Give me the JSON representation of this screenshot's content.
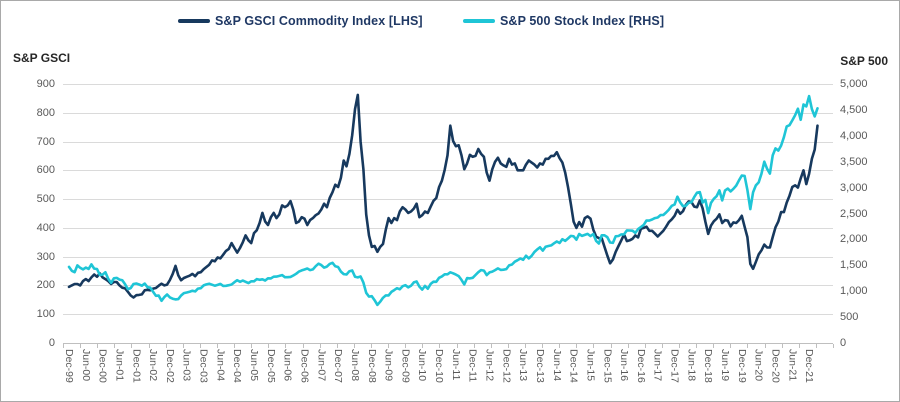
{
  "legend": {
    "items": [
      {
        "label": "S&P GSCI Commodity Index [LHS]",
        "color": "#17395e"
      },
      {
        "label": "S&P 500 Stock Index [RHS]",
        "color": "#1fc5d6"
      }
    ]
  },
  "left_axis": {
    "title": "S&P GSCI",
    "min": 0,
    "max": 900,
    "tick_labels": [
      "900",
      "800",
      "700",
      "600",
      "500",
      "400",
      "300",
      "200",
      "100",
      "0"
    ]
  },
  "right_axis": {
    "title": "S&P 500",
    "min": 0,
    "max": 5000,
    "tick_labels": [
      "5,000",
      "4,500",
      "4,000",
      "3,500",
      "3,000",
      "2,500",
      "2,000",
      "1,500",
      "1,000",
      "500",
      "0"
    ]
  },
  "x_axis": {
    "tick_labels": [
      "Dec-99",
      "Jun-00",
      "Dec-00",
      "Jun-01",
      "Dec-01",
      "Jun-02",
      "Dec-02",
      "Jun-03",
      "Dec-03",
      "Jun-04",
      "Dec-04",
      "Jun-05",
      "Dec-05",
      "Jun-06",
      "Dec-06",
      "Jun-07",
      "Dec-07",
      "Jun-08",
      "Dec-08",
      "Jun-09",
      "Dec-09",
      "Jun-10",
      "Dec-10",
      "Jun-11",
      "Dec-11",
      "Jun-12",
      "Dec-12",
      "Jun-13",
      "Dec-13",
      "Jun-14",
      "Dec-14",
      "Jun-15",
      "Dec-15",
      "Jun-16",
      "Dec-16",
      "Jun-17",
      "Dec-17",
      "Jun-18",
      "Dec-18",
      "Jun-19",
      "Dec-19",
      "Jun-20",
      "Dec-20",
      "Jun-21",
      "Dec-21"
    ]
  },
  "chart_data": {
    "type": "line",
    "title": "",
    "xlabel": "",
    "x_unit": "monthly",
    "x_start": "Dec-1999",
    "x_end": "Mar-2022",
    "grid": "horizontal",
    "legend_position": "top",
    "left_ylim": [
      0,
      900
    ],
    "right_ylim": [
      0,
      5000
    ],
    "series": [
      {
        "name": "S&P GSCI Commodity Index [LHS]",
        "axis": "left",
        "color": "#17395e",
        "values": [
          195,
          200,
          205,
          205,
          200,
          215,
          222,
          215,
          228,
          238,
          230,
          242,
          228,
          222,
          215,
          205,
          212,
          212,
          200,
          192,
          190,
          178,
          165,
          158,
          166,
          167,
          169,
          183,
          185,
          183,
          189,
          191,
          199,
          206,
          200,
          203,
          219,
          240,
          268,
          235,
          218,
          226,
          230,
          234,
          240,
          232,
          244,
          246,
          256,
          264,
          272,
          287,
          284,
          297,
          294,
          307,
          320,
          327,
          347,
          330,
          314,
          330,
          350,
          374,
          357,
          347,
          382,
          392,
          417,
          452,
          422,
          410,
          437,
          452,
          434,
          447,
          478,
          472,
          478,
          493,
          463,
          417,
          422,
          437,
          432,
          410,
          427,
          434,
          444,
          450,
          464,
          484,
          472,
          504,
          524,
          550,
          542,
          574,
          634,
          614,
          657,
          722,
          812,
          862,
          700,
          604,
          447,
          374,
          334,
          337,
          317,
          334,
          344,
          394,
          434,
          417,
          434,
          427,
          457,
          472,
          464,
          452,
          457,
          467,
          484,
          437,
          444,
          457,
          452,
          474,
          494,
          504,
          542,
          564,
          602,
          652,
          755,
          702,
          684,
          687,
          652,
          604,
          624,
          654,
          647,
          650,
          674,
          657,
          647,
          592,
          564,
          604,
          630,
          644,
          624,
          617,
          612,
          640,
          620,
          624,
          600,
          600,
          600,
          620,
          634,
          627,
          620,
          610,
          624,
          620,
          640,
          640,
          650,
          650,
          663,
          642,
          627,
          592,
          542,
          484,
          422,
          400,
          420,
          404,
          434,
          440,
          432,
          394,
          370,
          364,
          364,
          334,
          304,
          277,
          290,
          317,
          337,
          357,
          377,
          354,
          357,
          362,
          374,
          367,
          397,
          400,
          404,
          390,
          390,
          380,
          370,
          380,
          390,
          404,
          420,
          430,
          442,
          463,
          449,
          458,
          480,
          492,
          490,
          474,
          472,
          495,
          468,
          421,
          379,
          408,
          423,
          432,
          447,
          417,
          427,
          425,
          405,
          419,
          417,
          427,
          442,
          404,
          368,
          275,
          258,
          282,
          308,
          322,
          342,
          332,
          332,
          368,
          402,
          422,
          455,
          455,
          488,
          512,
          542,
          548,
          540,
          572,
          600,
          552,
          588,
          640,
          672,
          755
        ]
      },
      {
        "name": "S&P 500 Stock Index [RHS]",
        "axis": "right",
        "color": "#1fc5d6",
        "values": [
          1469,
          1394,
          1366,
          1499,
          1452,
          1421,
          1455,
          1431,
          1518,
          1436,
          1429,
          1315,
          1320,
          1366,
          1240,
          1160,
          1249,
          1256,
          1224,
          1211,
          1134,
          1041,
          1060,
          1139,
          1148,
          1130,
          1107,
          1147,
          1077,
          1067,
          990,
          912,
          916,
          815,
          886,
          936,
          880,
          856,
          841,
          848,
          917,
          964,
          975,
          990,
          1008,
          996,
          1051,
          1058,
          1112,
          1131,
          1145,
          1126,
          1107,
          1121,
          1141,
          1102,
          1104,
          1115,
          1130,
          1174,
          1212,
          1181,
          1204,
          1181,
          1157,
          1192,
          1191,
          1234,
          1220,
          1229,
          1207,
          1249,
          1248,
          1280,
          1281,
          1295,
          1311,
          1270,
          1270,
          1277,
          1304,
          1336,
          1378,
          1401,
          1418,
          1438,
          1407,
          1421,
          1482,
          1531,
          1503,
          1455,
          1474,
          1527,
          1549,
          1481,
          1468,
          1379,
          1331,
          1323,
          1386,
          1400,
          1280,
          1267,
          1283,
          1166,
          969,
          896,
          903,
          826,
          735,
          798,
          873,
          919,
          919,
          987,
          1021,
          1057,
          1036,
          1096,
          1115,
          1074,
          1104,
          1169,
          1187,
          1089,
          1031,
          1102,
          1049,
          1141,
          1183,
          1181,
          1258,
          1286,
          1327,
          1326,
          1364,
          1345,
          1321,
          1292,
          1219,
          1131,
          1253,
          1247,
          1258,
          1312,
          1366,
          1408,
          1398,
          1310,
          1362,
          1379,
          1407,
          1441,
          1412,
          1416,
          1426,
          1498,
          1515,
          1569,
          1598,
          1631,
          1606,
          1686,
          1633,
          1682,
          1757,
          1806,
          1848,
          1783,
          1859,
          1872,
          1884,
          1924,
          1960,
          1931,
          2003,
          1972,
          2018,
          2068,
          2059,
          1995,
          2105,
          2068,
          2086,
          2107,
          2063,
          2104,
          1972,
          1920,
          2079,
          2080,
          2044,
          1940,
          1932,
          2060,
          2065,
          2097,
          2099,
          2174,
          2171,
          2168,
          2126,
          2199,
          2239,
          2279,
          2364,
          2363,
          2384,
          2412,
          2423,
          2470,
          2472,
          2519,
          2575,
          2648,
          2674,
          2824,
          2714,
          2641,
          2648,
          2705,
          2718,
          2816,
          2902,
          2914,
          2712,
          2760,
          2507,
          2704,
          2784,
          2834,
          2946,
          2752,
          2942,
          2980,
          2926,
          2977,
          3038,
          3141,
          3231,
          3226,
          2954,
          2585,
          2912,
          3044,
          3100,
          3271,
          3500,
          3363,
          3270,
          3622,
          3756,
          3714,
          3811,
          3973,
          4181,
          4204,
          4298,
          4395,
          4523,
          4308,
          4605,
          4567,
          4766,
          4516,
          4374,
          4530
        ]
      }
    ]
  }
}
